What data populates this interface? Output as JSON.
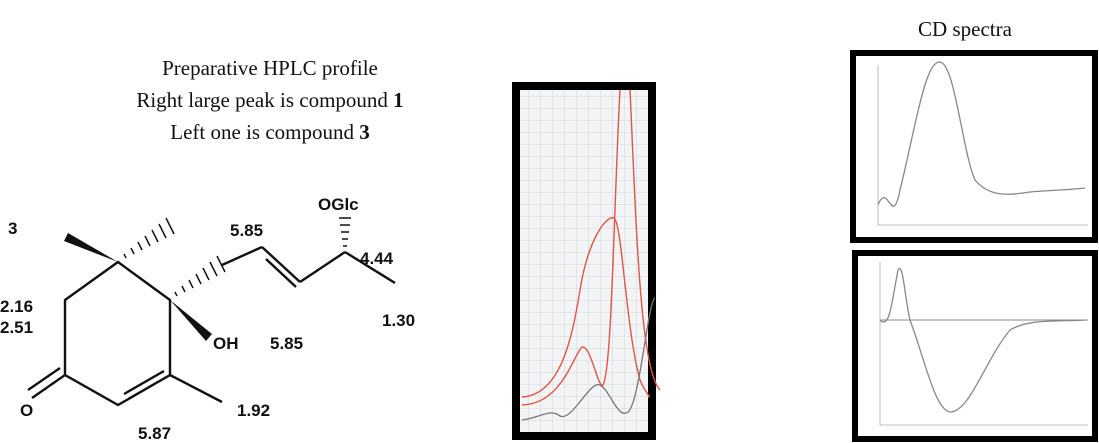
{
  "hplc_caption": {
    "line1": "Preparative HPLC profile",
    "line2": "Right large peak is compound ",
    "line2_compound": "1",
    "line3": "Left one is compound ",
    "line3_compound": "3"
  },
  "cd_caption": "CD spectra",
  "structure": {
    "compound": "3",
    "h_ch2_a": "2.16",
    "h_ch2_b": "2.51",
    "h_olefin_1": "5.85",
    "h_olefin_2": "5.85",
    "h_carbinol": "4.44",
    "glycoside": "OGlc",
    "hydroxyl": "OH",
    "ketone": "O",
    "h_methyl_terminal": "1.30",
    "h_methyl_vinyl": "1.92",
    "h_ring_olefin": "5.87"
  }
}
